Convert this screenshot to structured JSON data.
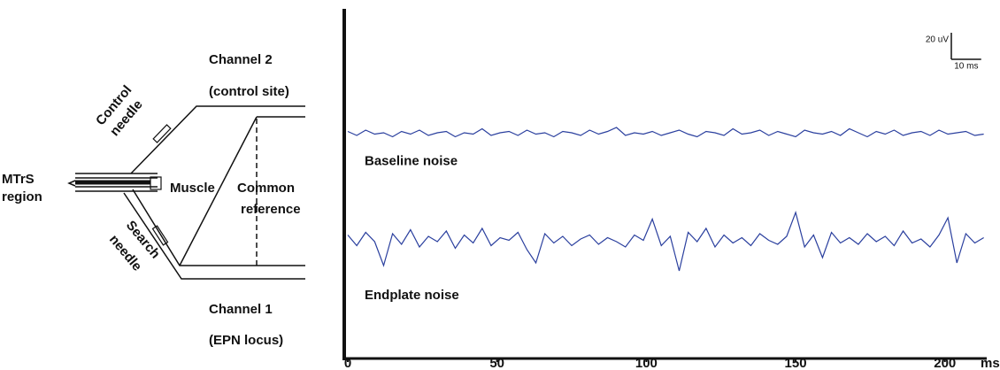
{
  "diagram": {
    "channel_2": [
      "Channel 2",
      "(control site)"
    ],
    "control_needle": [
      "Control",
      "needle"
    ],
    "mtrs_region": [
      "MTrS",
      "region"
    ],
    "muscle": "Muscle",
    "common_reference": [
      "Common",
      "reference"
    ],
    "search_needle": [
      "Search",
      "needle"
    ],
    "channel_1": [
      "Channel 1",
      "(EPN locus)"
    ]
  },
  "chart_data": {
    "type": "line",
    "x_unit": "ms",
    "xlim": [
      0,
      214
    ],
    "xticks": [
      0,
      50,
      100,
      150,
      200
    ],
    "ylim": [
      0,
      263
    ],
    "scale_bar": {
      "y": {
        "value": 20,
        "label": "20 uV"
      },
      "x": {
        "value": 10,
        "label": "10 ms"
      }
    },
    "x": [
      0,
      3,
      6,
      9,
      12,
      15,
      18,
      21,
      24,
      27,
      30,
      33,
      36,
      39,
      42,
      45,
      48,
      51,
      54,
      57,
      60,
      63,
      66,
      69,
      72,
      75,
      78,
      81,
      84,
      87,
      90,
      93,
      96,
      99,
      102,
      105,
      108,
      111,
      114,
      117,
      120,
      123,
      126,
      129,
      132,
      135,
      138,
      141,
      144,
      147,
      150,
      153,
      156,
      159,
      162,
      165,
      168,
      171,
      174,
      177,
      180,
      183,
      186,
      189,
      192,
      195,
      198,
      201,
      204,
      207,
      210,
      213
    ],
    "series": [
      {
        "name": "Baseline noise",
        "color": "#2a3f9e",
        "values": [
          171,
          168,
          172,
          169,
          170,
          167,
          171,
          169,
          172,
          168,
          170,
          171,
          167,
          170,
          169,
          173,
          168,
          170,
          171,
          168,
          172,
          169,
          170,
          167,
          171,
          170,
          168,
          172,
          169,
          171,
          174,
          168,
          170,
          169,
          171,
          168,
          170,
          172,
          169,
          167,
          171,
          170,
          168,
          173,
          169,
          170,
          172,
          168,
          171,
          169,
          167,
          172,
          170,
          169,
          171,
          168,
          173,
          170,
          167,
          171,
          169,
          172,
          168,
          170,
          171,
          168,
          172,
          169,
          170,
          171,
          168,
          169
        ]
      },
      {
        "name": "Endplate noise",
        "color": "#2a3f9e",
        "values": [
          93,
          85,
          95,
          88,
          70,
          94,
          86,
          97,
          84,
          92,
          88,
          96,
          83,
          93,
          87,
          98,
          85,
          91,
          89,
          95,
          82,
          72,
          94,
          87,
          92,
          85,
          90,
          93,
          86,
          91,
          88,
          84,
          93,
          89,
          105,
          85,
          92,
          66,
          95,
          88,
          98,
          84,
          93,
          87,
          91,
          85,
          94,
          89,
          86,
          92,
          110,
          84,
          93,
          76,
          95,
          87,
          91,
          86,
          94,
          88,
          92,
          85,
          96,
          87,
          90,
          84,
          93,
          106,
          72,
          94,
          87,
          91
        ]
      }
    ]
  }
}
